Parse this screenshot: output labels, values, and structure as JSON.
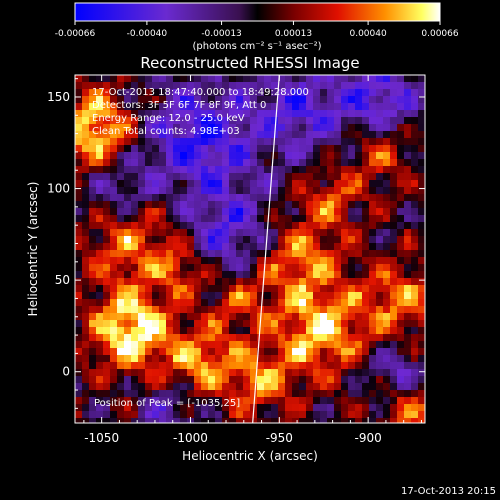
{
  "chart_data": {
    "type": "heatmap",
    "title": "Reconstructed RHESSI Image",
    "xlabel": "Heliocentric X (arcsec)",
    "ylabel": "Heliocentric Y (arcsec)",
    "xlim": [
      -1065,
      -868
    ],
    "ylim": [
      -28,
      162
    ],
    "x_ticks": [
      -1050,
      -1000,
      -950,
      -900
    ],
    "y_ticks": [
      0,
      50,
      100,
      150
    ],
    "colorbar": {
      "ticks": [
        "-0.00066",
        "-0.00040",
        "-0.00013",
        "0.00013",
        "0.00040",
        "0.00066"
      ],
      "unit_label": "(photons cm⁻² s⁻¹ asec⁻²)",
      "range": [
        -0.00066,
        0.00066
      ]
    },
    "annotations": [
      "17-Oct-2013 18:47:40.000 to 18:49:28.000",
      "Detectors: 3F 5F 6F 7F 8F 9F, Att 0",
      "Energy Range: 12.0 - 25.0 keV",
      "Clean    Total counts: 4.98E+03"
    ],
    "peak_label": "Position of Peak = [-1035,25]",
    "peak_position": [
      -1035,
      25
    ],
    "limb_line": [
      [
        -965,
        -28
      ],
      [
        -950,
        162
      ]
    ],
    "footer_timestamp": "17-Oct-2013 20:15"
  }
}
